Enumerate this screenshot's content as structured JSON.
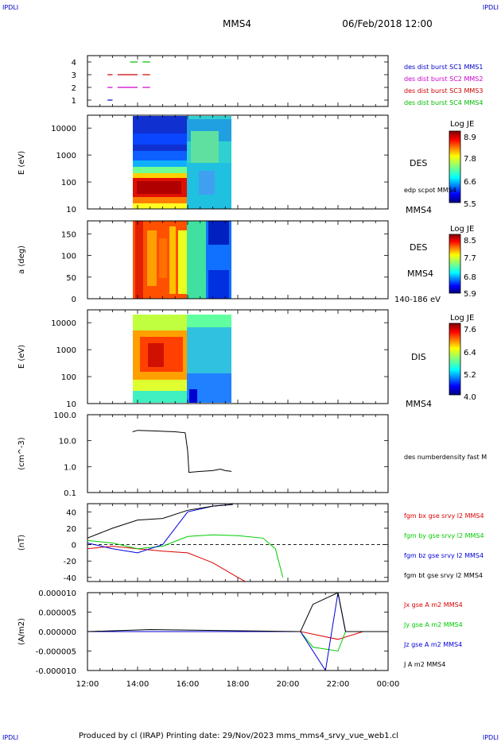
{
  "header": {
    "corner_tl": "IPDLI",
    "corner_tr": "IPDLI",
    "corner_bl": "IPDLI",
    "corner_br": "IPDLI",
    "spacecraft": "MMS4",
    "date": "06/Feb/2018 12:00"
  },
  "footer": {
    "text": "Produced by cl (IRAP)   Printing date: 29/Nov/2023   mms_mms4_srvy_vue_web1.cl"
  },
  "colors": {
    "mms1": "#0000cc",
    "mms2": "#cc00cc",
    "mms3": "#cc0000",
    "mms4": "#00bb00",
    "bx": "#dd0000",
    "by": "#00cc00",
    "bz": "#0000dd",
    "bt": "#000000"
  },
  "chart_data": [
    {
      "type": "line",
      "panel": "burst availability",
      "ylim": [
        0.5,
        4.5
      ],
      "yticks": [
        "1",
        "2",
        "3",
        "4"
      ],
      "legend": [
        "des dist burst SC1 MMS1",
        "des dist burst SC2 MMS2",
        "des dist burst SC3 MMS3",
        "des dist burst SC4 MMS4"
      ],
      "series": [
        {
          "name": "des dist burst SC1 MMS1",
          "level": 1,
          "segments": [
            [
              12.8,
              13.0
            ]
          ]
        },
        {
          "name": "des dist burst SC2 MMS2",
          "level": 2,
          "segments": [
            [
              12.8,
              13.0
            ],
            [
              13.2,
              14.0
            ],
            [
              14.2,
              14.5
            ]
          ]
        },
        {
          "name": "des dist burst SC3 MMS3",
          "level": 3,
          "segments": [
            [
              12.8,
              13.0
            ],
            [
              13.2,
              14.0
            ],
            [
              14.2,
              14.5
            ]
          ]
        },
        {
          "name": "des dist burst SC4 MMS4",
          "level": 4,
          "segments": [
            [
              13.7,
              14.0
            ],
            [
              14.2,
              14.5
            ]
          ]
        }
      ]
    },
    {
      "type": "heatmap",
      "panel": "DES energy spectrogram",
      "ylabel": "E (eV)",
      "ylog": true,
      "ylim": [
        10,
        30000
      ],
      "yticks": [
        "10",
        "100",
        "1000",
        "10000"
      ],
      "labels": [
        "DES",
        "edp scpot MMS4",
        "MMS4"
      ],
      "colorbar": {
        "title": "Log JE",
        "ticks": [
          "8.9",
          "7.8",
          "6.6",
          "5.5"
        ],
        "min": 5.5,
        "max": 8.9
      },
      "x_range": [
        13.75,
        17.75
      ]
    },
    {
      "type": "heatmap",
      "panel": "DES pitch angle",
      "ylabel": "a (deg)",
      "ylim": [
        0,
        180
      ],
      "yticks": [
        "0",
        "50",
        "100",
        "150"
      ],
      "labels": [
        "DES",
        "MMS4",
        "140-186 eV"
      ],
      "colorbar": {
        "title": "Log JE",
        "ticks": [
          "8.5",
          "7.7",
          "6.8",
          "5.9"
        ],
        "min": 5.9,
        "max": 8.5
      },
      "x_range": [
        13.75,
        17.75
      ]
    },
    {
      "type": "heatmap",
      "panel": "DIS energy spectrogram",
      "ylabel": "E (eV)",
      "ylog": true,
      "ylim": [
        10,
        30000
      ],
      "yticks": [
        "10",
        "100",
        "1000",
        "10000"
      ],
      "labels": [
        "DIS",
        "MMS4"
      ],
      "colorbar": {
        "title": "Log JE",
        "ticks": [
          "7.6",
          "6.4",
          "5.2",
          "4.0"
        ],
        "min": 4.0,
        "max": 7.6
      },
      "x_range": [
        13.75,
        17.75
      ]
    },
    {
      "type": "line",
      "panel": "density",
      "ylabel": "(cm^-3)",
      "ylog": true,
      "ylim": [
        0.1,
        100
      ],
      "yticks": [
        "0.1",
        "1.0",
        "10.0",
        "100.0"
      ],
      "legend": [
        "des numberdensity fast M"
      ],
      "series": [
        {
          "name": "des numberdensity fast M",
          "points": [
            [
              13.8,
              22
            ],
            [
              14.0,
              25
            ],
            [
              14.5,
              24
            ],
            [
              15.0,
              23
            ],
            [
              15.5,
              22
            ],
            [
              15.9,
              20
            ],
            [
              16.0,
              4
            ],
            [
              16.05,
              0.6
            ],
            [
              16.5,
              0.65
            ],
            [
              17.0,
              0.7
            ],
            [
              17.3,
              0.8
            ],
            [
              17.5,
              0.7
            ],
            [
              17.75,
              0.65
            ]
          ]
        }
      ]
    },
    {
      "type": "line",
      "panel": "magnetic field",
      "ylabel": "(nT)",
      "ylim": [
        -45,
        50
      ],
      "yticks": [
        "-40",
        "-20",
        "0",
        "20",
        "40"
      ],
      "legend": [
        "fgm bx gse srvy l2 MMS4",
        "fgm by gse srvy l2 MMS4",
        "fgm bz gse srvy l2 MMS4",
        "fgm bt gse srvy l2 MMS4"
      ],
      "series": [
        {
          "name": "fgm bx gse srvy l2 MMS4",
          "points": [
            [
              12.0,
              -5
            ],
            [
              13.0,
              -2
            ],
            [
              14.0,
              -5
            ],
            [
              15.0,
              -8
            ],
            [
              16.0,
              -10
            ],
            [
              17.0,
              -22
            ],
            [
              18.0,
              -40
            ],
            [
              18.3,
              -45
            ]
          ]
        },
        {
          "name": "fgm by gse srvy l2 MMS4",
          "points": [
            [
              12.0,
              5
            ],
            [
              13.0,
              2
            ],
            [
              14.0,
              -5
            ],
            [
              15.0,
              -2
            ],
            [
              16.0,
              10
            ],
            [
              17.0,
              12
            ],
            [
              18.0,
              11
            ],
            [
              19.0,
              8
            ],
            [
              19.5,
              -5
            ],
            [
              19.8,
              -40
            ]
          ]
        },
        {
          "name": "fgm bz gse srvy l2 MMS4",
          "points": [
            [
              12.0,
              2
            ],
            [
              13.0,
              -5
            ],
            [
              14.0,
              -10
            ],
            [
              15.0,
              0
            ],
            [
              16.0,
              40
            ],
            [
              17.0,
              47
            ],
            [
              17.8,
              49
            ]
          ]
        },
        {
          "name": "fgm bt gse srvy l2 MMS4",
          "points": [
            [
              12.0,
              8
            ],
            [
              13.0,
              20
            ],
            [
              14.0,
              30
            ],
            [
              15.0,
              32
            ],
            [
              16.0,
              42
            ],
            [
              17.0,
              47
            ],
            [
              17.8,
              49
            ]
          ]
        }
      ]
    },
    {
      "type": "line",
      "panel": "current density",
      "ylabel": "(A/m2)",
      "ylim": [
        -1e-05,
        1e-05
      ],
      "yticks": [
        "-0.000010",
        "-0.000005",
        "0.000000",
        "0.000005",
        "0.000010"
      ],
      "legend": [
        "Jx gse A m2 MMS4",
        "Jy gse A m2 MMS4",
        "Jz gse A m2 MMS4",
        "J A m2 MMS4"
      ],
      "series": [
        {
          "name": "Jx gse A m2 MMS4",
          "points": [
            [
              12.0,
              0
            ],
            [
              20.5,
              0
            ],
            [
              22.0,
              -2e-06
            ],
            [
              23.0,
              0
            ],
            [
              24.0,
              0
            ]
          ]
        },
        {
          "name": "Jy gse A m2 MMS4",
          "points": [
            [
              12.0,
              0
            ],
            [
              20.5,
              0
            ],
            [
              21.0,
              -4e-06
            ],
            [
              22.0,
              -5e-06
            ],
            [
              22.3,
              0
            ],
            [
              24.0,
              0
            ]
          ]
        },
        {
          "name": "Jz gse A m2 MMS4",
          "points": [
            [
              12.0,
              0
            ],
            [
              20.5,
              0
            ],
            [
              21.5,
              -1e-05
            ],
            [
              22.0,
              1e-05
            ],
            [
              22.3,
              0
            ],
            [
              24.0,
              0
            ]
          ]
        },
        {
          "name": "J A m2 MMS4",
          "points": [
            [
              12.0,
              0
            ],
            [
              14.5,
              5e-07
            ],
            [
              20.5,
              0
            ],
            [
              21.0,
              7e-06
            ],
            [
              22.0,
              1e-05
            ],
            [
              22.3,
              0
            ],
            [
              24.0,
              0
            ]
          ]
        }
      ]
    }
  ],
  "x_axis": {
    "ticks": [
      "12:00",
      "14:00",
      "16:00",
      "18:00",
      "20:00",
      "22:00",
      "00:00"
    ],
    "xlim": [
      12,
      24
    ]
  }
}
